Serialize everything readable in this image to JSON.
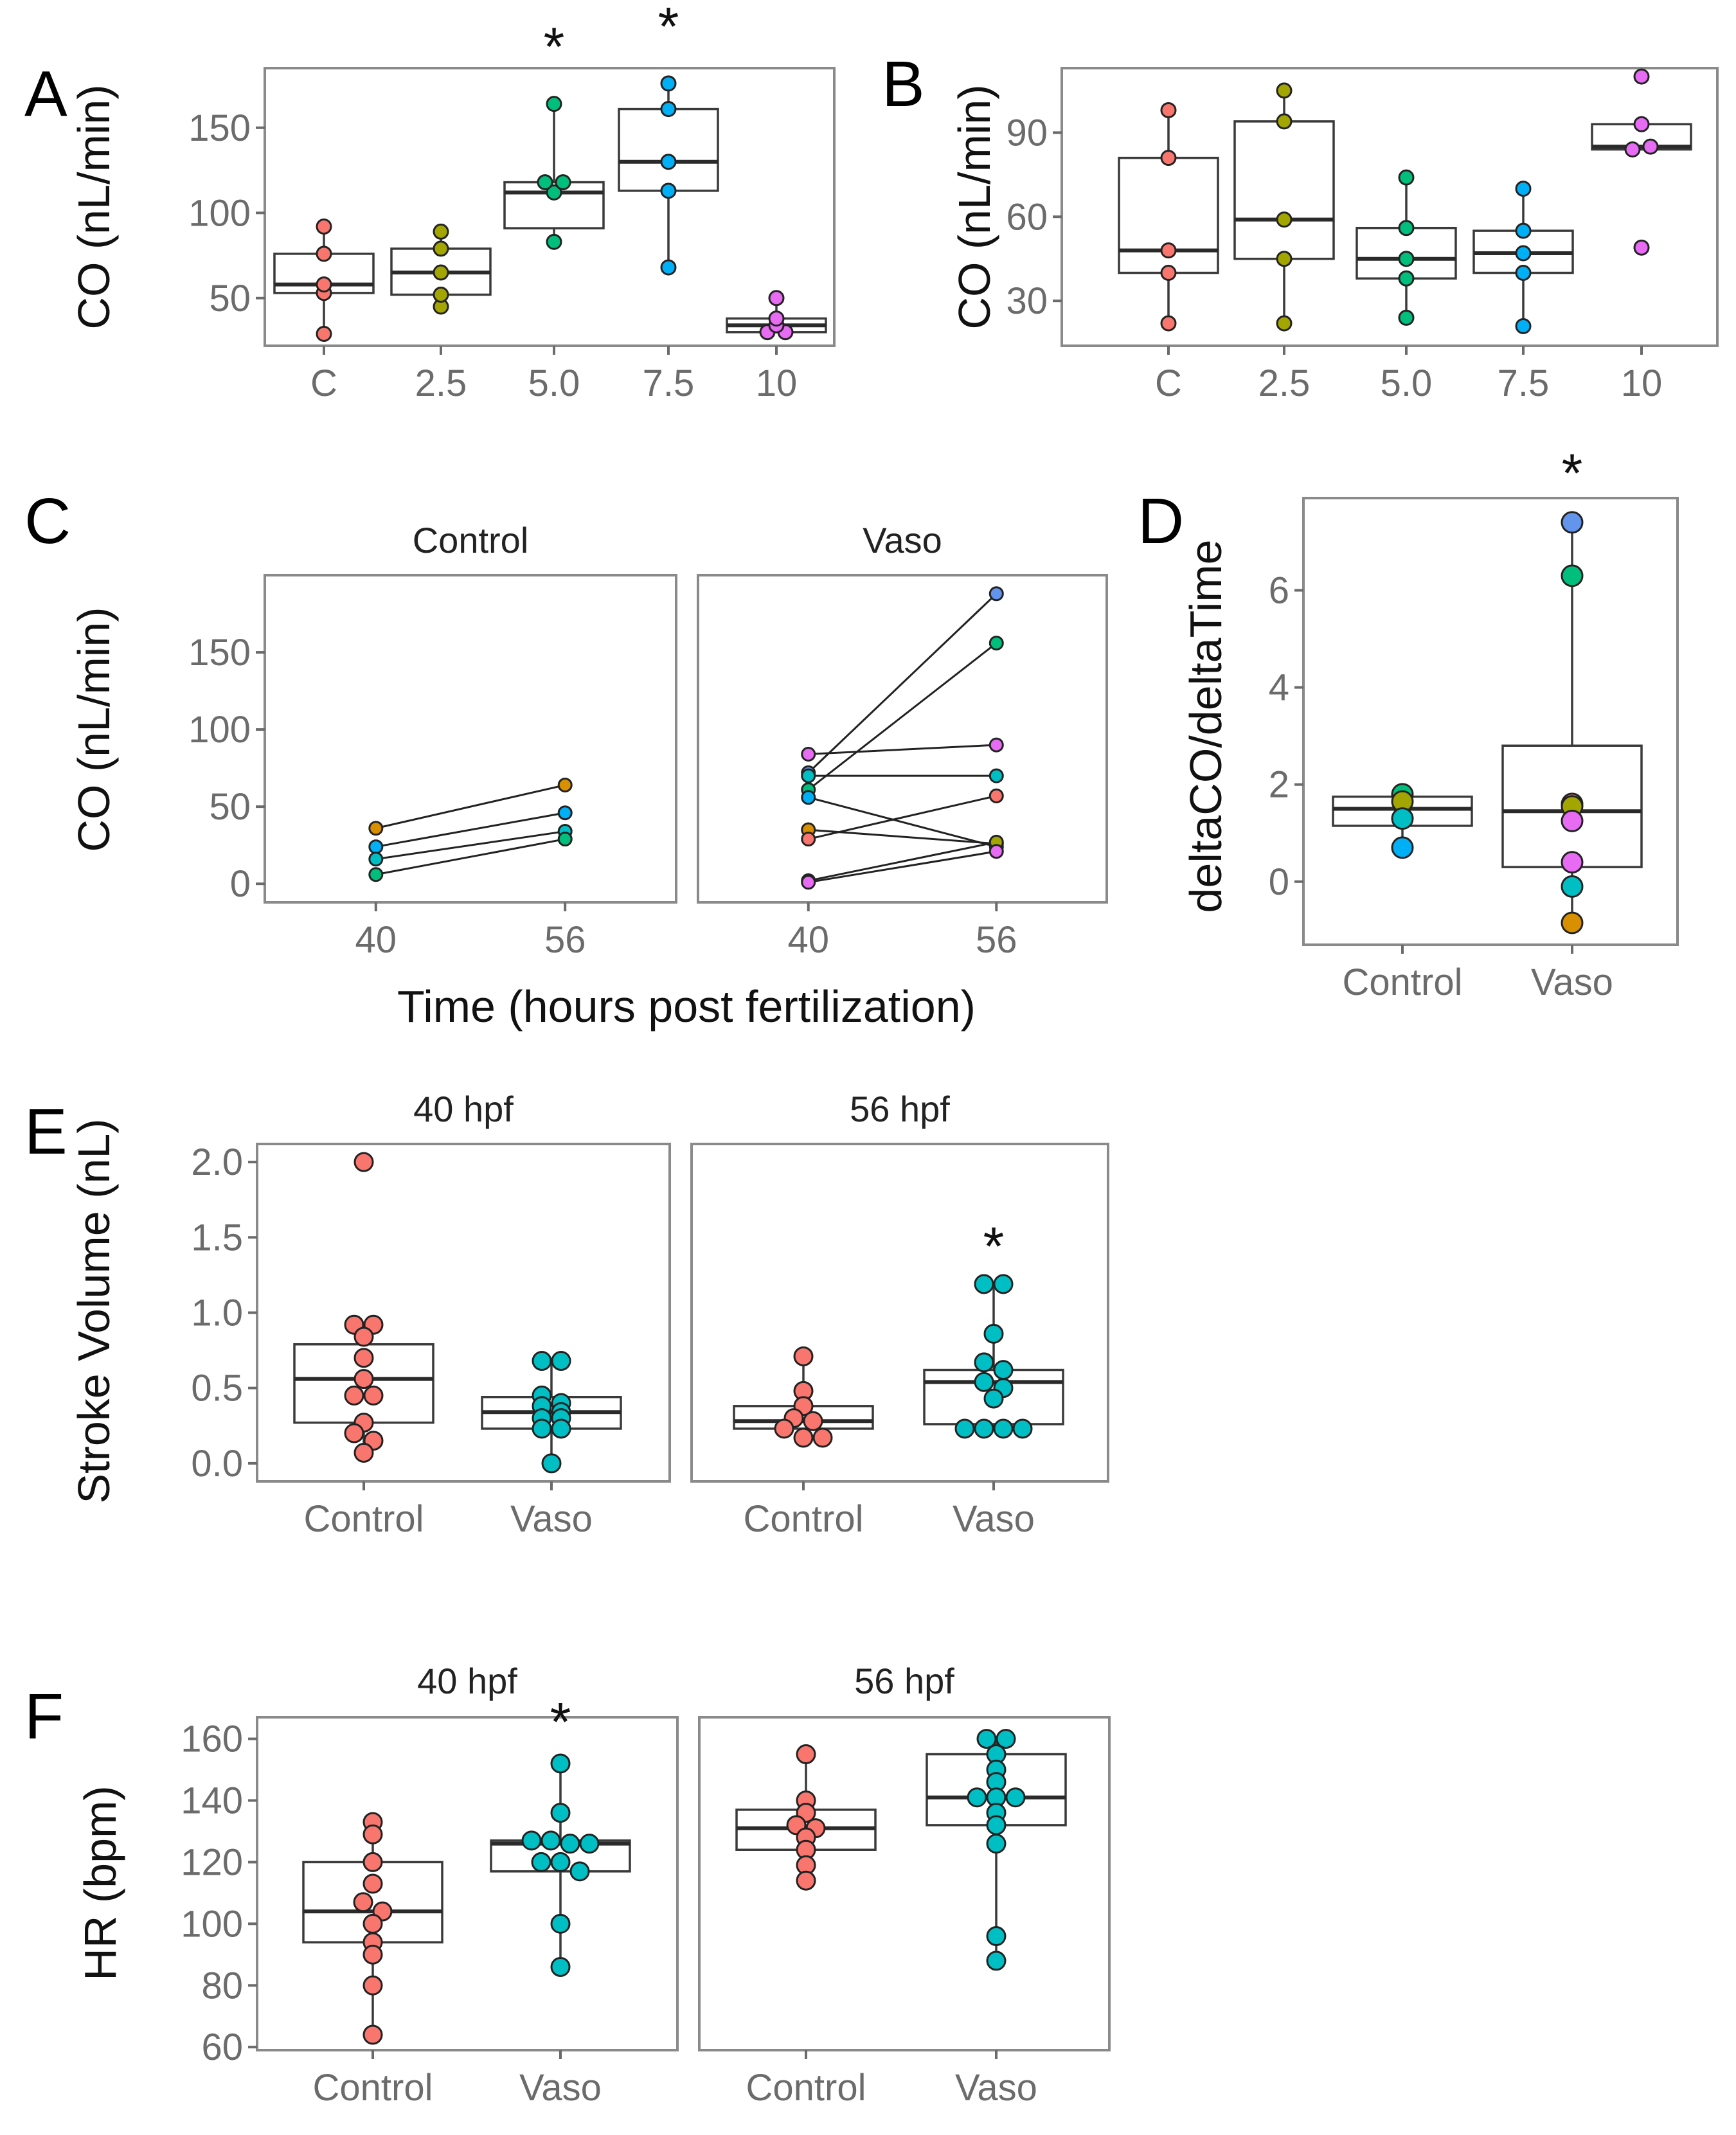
{
  "palette": {
    "red": "#F8766D",
    "olive": "#A3A500",
    "green": "#00BF7D",
    "blue": "#00B0F6",
    "magenta": "#E76BF3",
    "orange": "#D89000",
    "teal": "#00BFC4",
    "periwinkle": "#6495ED"
  },
  "panels": {
    "A": {
      "label": "A"
    },
    "B": {
      "label": "B"
    },
    "C": {
      "label": "C"
    },
    "D": {
      "label": "D"
    },
    "E": {
      "label": "E"
    },
    "F": {
      "label": "F"
    }
  },
  "chart_data": [
    {
      "id": "A",
      "type": "box",
      "ylabel": "CO (nL/min)",
      "categories": [
        "C",
        "2.5",
        "5.0",
        "7.5",
        "10"
      ],
      "ylim": [
        22,
        185
      ],
      "yticks": [
        50,
        100,
        150
      ],
      "colors": [
        "red",
        "olive",
        "green",
        "blue",
        "magenta"
      ],
      "annotations": [
        "",
        "",
        "*",
        "*",
        ""
      ],
      "boxes": [
        {
          "q1": 53,
          "median": 58,
          "q3": 76,
          "wlo": 29,
          "whi": 92
        },
        {
          "q1": 52,
          "median": 65,
          "q3": 79,
          "wlo": 45,
          "whi": 89
        },
        {
          "q1": 91,
          "median": 112,
          "q3": 118,
          "wlo": 83,
          "whi": 164
        },
        {
          "q1": 113,
          "median": 130,
          "q3": 161,
          "wlo": 68,
          "whi": 176
        },
        {
          "q1": 30,
          "median": 34,
          "q3": 38,
          "wlo": 30,
          "whi": 50
        }
      ],
      "points": [
        [
          29,
          53,
          58,
          76,
          92
        ],
        [
          45,
          52,
          65,
          79,
          89
        ],
        [
          83,
          112,
          118,
          118,
          164
        ],
        [
          68,
          113,
          130,
          161,
          176
        ],
        [
          30,
          30,
          34,
          38,
          50
        ]
      ]
    },
    {
      "id": "B",
      "type": "box",
      "ylabel": "CO (nL/min)",
      "categories": [
        "C",
        "2.5",
        "5.0",
        "7.5",
        "10"
      ],
      "ylim": [
        14,
        113
      ],
      "yticks": [
        30,
        60,
        90
      ],
      "colors": [
        "red",
        "olive",
        "green",
        "blue",
        "magenta"
      ],
      "annotations": [
        "",
        "",
        "",
        "",
        ""
      ],
      "boxes": [
        {
          "q1": 40,
          "median": 48,
          "q3": 81,
          "wlo": 22,
          "whi": 98
        },
        {
          "q1": 45,
          "median": 59,
          "q3": 94,
          "wlo": 22,
          "whi": 105
        },
        {
          "q1": 38,
          "median": 45,
          "q3": 56,
          "wlo": 24,
          "whi": 74
        },
        {
          "q1": 40,
          "median": 47,
          "q3": 55,
          "wlo": 21,
          "whi": 70
        },
        {
          "q1": 84,
          "median": 85,
          "q3": 93,
          "wlo": 84,
          "whi": 93
        }
      ],
      "points": [
        [
          22,
          40,
          48,
          81,
          98
        ],
        [
          22,
          45,
          59,
          94,
          105
        ],
        [
          24,
          38,
          45,
          56,
          74
        ],
        [
          21,
          40,
          47,
          55,
          70
        ],
        [
          49,
          84,
          85,
          93,
          110
        ]
      ]
    },
    {
      "id": "C",
      "type": "line",
      "ylabel": "CO (nL/min)",
      "xlabel": "Time (hours post fertilization)",
      "x": [
        40,
        56
      ],
      "xticks": [
        "40",
        "56"
      ],
      "ylim": [
        -12,
        200
      ],
      "yticks": [
        0,
        50,
        100,
        150
      ],
      "facets": [
        {
          "title": "Control",
          "series": [
            {
              "color": "orange",
              "values": [
                36,
                64
              ]
            },
            {
              "color": "blue",
              "values": [
                24,
                46
              ]
            },
            {
              "color": "teal",
              "values": [
                16,
                34
              ]
            },
            {
              "color": "green",
              "values": [
                6,
                29
              ]
            }
          ]
        },
        {
          "title": "Vaso",
          "series": [
            {
              "color": "periwinkle",
              "values": [
                72,
                188
              ]
            },
            {
              "color": "green",
              "values": [
                61,
                156
              ]
            },
            {
              "color": "magenta",
              "values": [
                84,
                90
              ]
            },
            {
              "color": "teal",
              "values": [
                70,
                70
              ]
            },
            {
              "color": "blue",
              "values": [
                56,
                24
              ]
            },
            {
              "color": "orange",
              "values": [
                35,
                26
              ]
            },
            {
              "color": "red",
              "values": [
                29,
                57
              ]
            },
            {
              "color": "olive",
              "values": [
                2,
                27
              ]
            },
            {
              "color": "magenta",
              "values": [
                1,
                21
              ]
            }
          ]
        }
      ]
    },
    {
      "id": "D",
      "type": "box",
      "ylabel": "deltaCO/deltaTime",
      "categories": [
        "Control",
        "Vaso"
      ],
      "ylim": [
        -1.3,
        7.9
      ],
      "yticks": [
        0,
        2,
        4,
        6
      ],
      "annotations": [
        "",
        "*"
      ],
      "boxes": [
        {
          "q1": 1.15,
          "median": 1.5,
          "q3": 1.75,
          "wlo": 0.7,
          "whi": 1.8
        },
        {
          "q1": 0.3,
          "median": 1.45,
          "q3": 2.8,
          "wlo": -0.85,
          "whi": 7.4
        }
      ],
      "point_sets": [
        [
          {
            "v": 1.8,
            "c": "green"
          },
          {
            "v": 1.65,
            "c": "olive"
          },
          {
            "v": 1.3,
            "c": "teal"
          },
          {
            "v": 0.7,
            "c": "blue"
          }
        ],
        [
          {
            "v": 7.4,
            "c": "periwinkle"
          },
          {
            "v": 6.3,
            "c": "green"
          },
          {
            "v": 1.6,
            "c": "red"
          },
          {
            "v": 1.55,
            "c": "olive"
          },
          {
            "v": 1.25,
            "c": "magenta"
          },
          {
            "v": 0.4,
            "c": "magenta"
          },
          {
            "v": -0.1,
            "c": "teal"
          },
          {
            "v": -0.85,
            "c": "orange"
          }
        ]
      ]
    },
    {
      "id": "E",
      "type": "box",
      "ylabel": "Stroke Volume (nL)",
      "ylim": [
        -0.12,
        2.12
      ],
      "yticks": [
        "0.0",
        "0.5",
        "1.0",
        "1.5",
        "2.0"
      ],
      "facets": [
        {
          "title": "40 hpf",
          "categories": [
            "Control",
            "Vaso"
          ],
          "annotation": "",
          "boxes": [
            {
              "q1": 0.27,
              "median": 0.56,
              "q3": 0.79,
              "wlo": 0.07,
              "whi": 0.92
            },
            {
              "q1": 0.23,
              "median": 0.34,
              "q3": 0.44,
              "wlo": 0.0,
              "whi": 0.68
            }
          ],
          "points": [
            [
              2.0,
              0.92,
              0.92,
              0.84,
              0.7,
              0.56,
              0.45,
              0.45,
              0.27,
              0.2,
              0.15,
              0.07
            ],
            [
              0.68,
              0.68,
              0.45,
              0.4,
              0.38,
              0.34,
              0.3,
              0.3,
              0.23,
              0.23,
              0.0
            ]
          ]
        },
        {
          "title": "56 hpf",
          "categories": [
            "Control",
            "Vaso"
          ],
          "annotation": "*",
          "annotation_index": 1,
          "boxes": [
            {
              "q1": 0.23,
              "median": 0.28,
              "q3": 0.38,
              "wlo": 0.17,
              "whi": 0.71
            },
            {
              "q1": 0.26,
              "median": 0.54,
              "q3": 0.62,
              "wlo": 0.23,
              "whi": 1.19
            }
          ],
          "points": [
            [
              0.71,
              0.48,
              0.38,
              0.3,
              0.28,
              0.23,
              0.17,
              0.17
            ],
            [
              1.19,
              1.19,
              0.86,
              0.67,
              0.62,
              0.54,
              0.5,
              0.43,
              0.23,
              0.23,
              0.23,
              0.23
            ]
          ]
        }
      ]
    },
    {
      "id": "F",
      "type": "box",
      "ylabel": "HR (bpm)",
      "ylim": [
        59,
        167
      ],
      "yticks": [
        60,
        80,
        100,
        120,
        140,
        160
      ],
      "facets": [
        {
          "title": "40 hpf",
          "categories": [
            "Control",
            "Vaso"
          ],
          "annotation": "*",
          "annotation_index": 1,
          "boxes": [
            {
              "q1": 94,
              "median": 104,
              "q3": 120,
              "wlo": 64,
              "whi": 133
            },
            {
              "q1": 117,
              "median": 126,
              "q3": 127,
              "wlo": 86,
              "whi": 152
            }
          ],
          "points": [
            [
              133,
              129,
              120,
              113,
              107,
              104,
              100,
              94,
              90,
              80,
              64
            ],
            [
              152,
              136,
              127,
              127,
              126,
              126,
              120,
              120,
              117,
              100,
              86
            ]
          ]
        },
        {
          "title": "56 hpf",
          "categories": [
            "Control",
            "Vaso"
          ],
          "annotation": "",
          "boxes": [
            {
              "q1": 124,
              "median": 131,
              "q3": 137,
              "wlo": 114,
              "whi": 155
            },
            {
              "q1": 132,
              "median": 141,
              "q3": 155,
              "wlo": 88,
              "whi": 160
            }
          ],
          "points": [
            [
              155,
              140,
              136,
              132,
              131,
              128,
              124,
              119,
              114
            ],
            [
              160,
              160,
              155,
              150,
              146,
              141,
              141,
              141,
              136,
              132,
              126,
              96,
              88
            ]
          ]
        }
      ]
    }
  ]
}
